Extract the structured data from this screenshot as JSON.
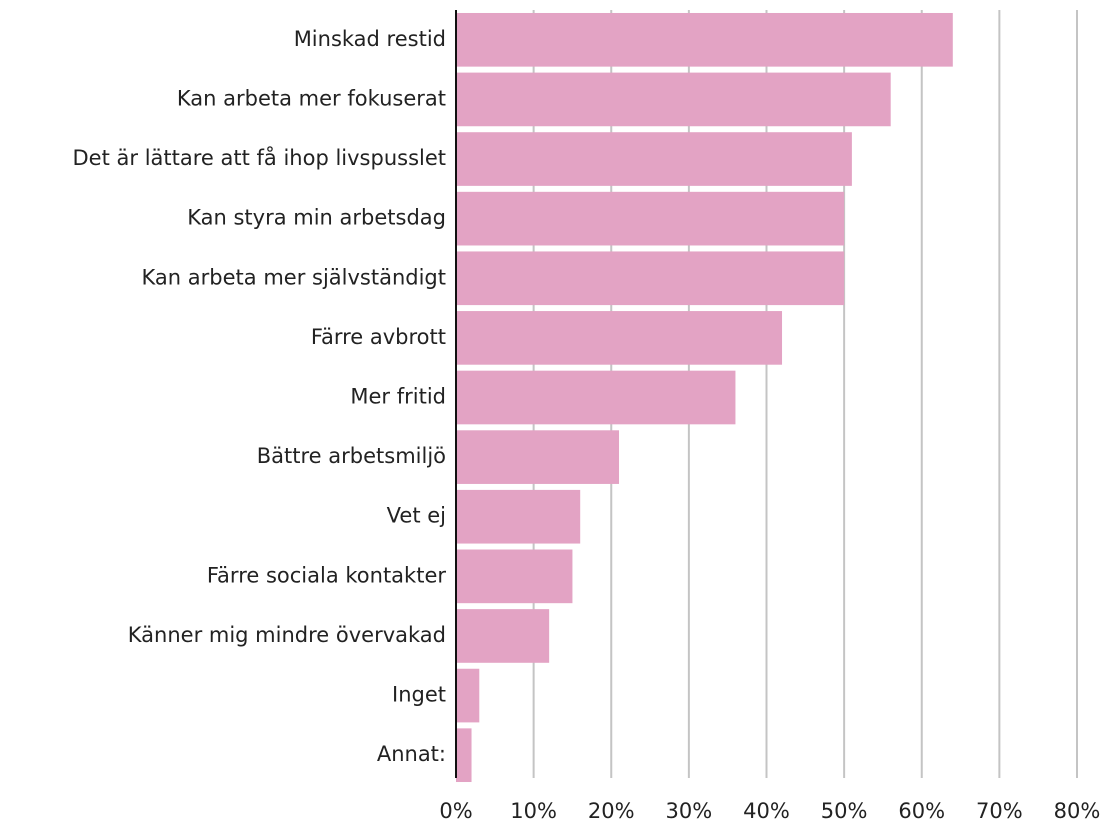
{
  "chart_data": {
    "type": "bar",
    "orientation": "horizontal",
    "categories": [
      "Minskad restid",
      "Kan arbeta mer fokuserat",
      "Det är lättare att få ihop livspusslet",
      "Kan styra min arbetsdag",
      "Kan arbeta mer självständigt",
      "Färre avbrott",
      "Mer fritid",
      "Bättre arbetsmiljö",
      "Vet ej",
      "Färre sociala kontakter",
      "Känner mig mindre övervakad",
      "Inget",
      "Annat:"
    ],
    "values": [
      64,
      56,
      51,
      50,
      50,
      42,
      36,
      21,
      16,
      15,
      12,
      3,
      2
    ],
    "color": "#e3a3c4",
    "xlim": [
      0,
      80
    ],
    "xticks": [
      {
        "value": 0,
        "label": "0%"
      },
      {
        "value": 10,
        "label": "10%"
      },
      {
        "value": 20,
        "label": "20%"
      },
      {
        "value": 30,
        "label": "30%"
      },
      {
        "value": 40,
        "label": "40%"
      },
      {
        "value": 50,
        "label": "50%"
      },
      {
        "value": 60,
        "label": "60%"
      },
      {
        "value": 70,
        "label": "70%"
      },
      {
        "value": 80,
        "label": "80%"
      }
    ],
    "grid": true
  }
}
